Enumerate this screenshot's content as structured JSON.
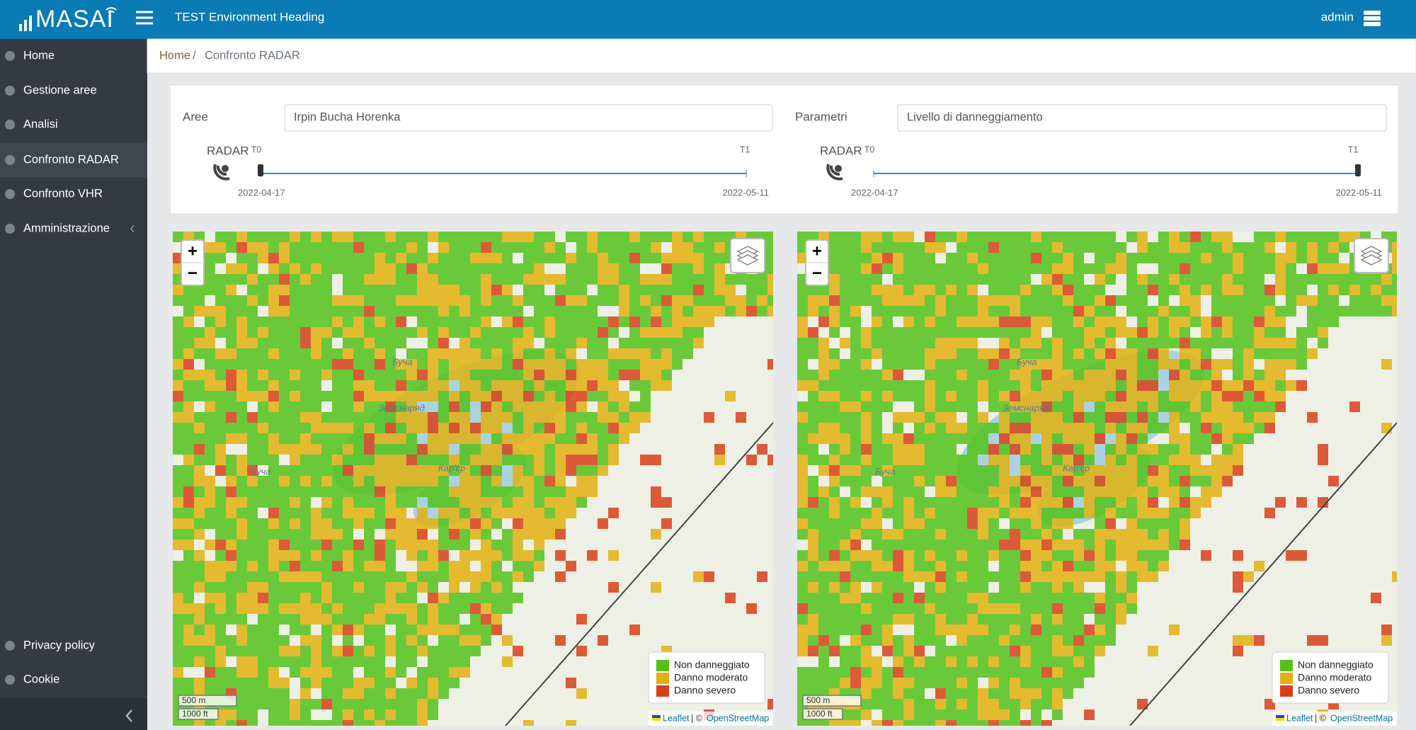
{
  "header": {
    "logo": "MASAI",
    "title": "TEST Environment Heading",
    "user": "admin"
  },
  "sidebar": {
    "items": [
      "Home",
      "Gestione aree",
      "Analisi",
      "Confronto RADAR",
      "Confronto VHR",
      "Amministrazione"
    ],
    "footer_items": [
      "Privacy policy",
      "Cookie"
    ]
  },
  "breadcrumb": [
    "Home",
    "Confronto RADAR"
  ],
  "panels": [
    {
      "field_label": "Aree",
      "field_value": "Irpin Bucha Horenka",
      "radar_label": "RADAR",
      "t0": "T0",
      "t1": "T1",
      "start_date": "2022-04-17",
      "end_date": "2022-05-11"
    },
    {
      "field_label": "Parametri",
      "field_value": "Livello di danneggiamento",
      "radar_label": "RADAR",
      "t0": "T0",
      "t1": "T1",
      "start_date": "2022-04-17",
      "end_date": "2022-05-11"
    }
  ],
  "maps": [
    {
      "zoom_in": "+",
      "zoom_out": "−",
      "legend": [
        "Non danneggiato",
        "Danno moderato",
        "Danno severo"
      ],
      "scale": [
        "500 m",
        "1000 ft"
      ],
      "attribution": [
        "Leaflet",
        "| ©",
        "OpenStreetMap"
      ],
      "place_labels": [
        "Буча",
        "Земснаряд",
        "Кар'єр",
        "Буча"
      ]
    },
    {
      "zoom_in": "+",
      "zoom_out": "−",
      "legend": [
        "Non danneggiato",
        "Danno moderato",
        "Danno severo"
      ],
      "scale": [
        "500 m",
        "1000 ft"
      ],
      "attribution": [
        "Leaflet",
        "| ©",
        "OpenStreetMap"
      ],
      "place_labels": [
        "Буча",
        "Земснаряд",
        "Кар'єр",
        "Буча"
      ]
    }
  ]
}
